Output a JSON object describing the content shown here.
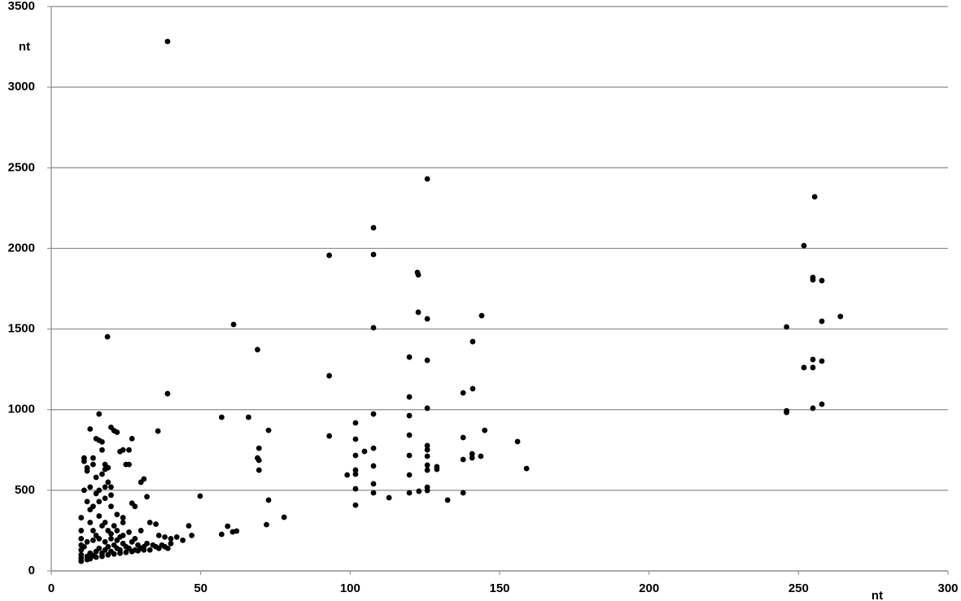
{
  "chart_data": {
    "type": "scatter",
    "x_label": "nt",
    "y_label": "nt",
    "xlim": [
      0,
      300
    ],
    "xticks": [
      0,
      50,
      100,
      150,
      200,
      250,
      300
    ],
    "ylim": [
      0,
      3500
    ],
    "yticks": [
      0,
      500,
      1000,
      1500,
      2000,
      2500,
      3000,
      3500
    ],
    "grid": true,
    "color": "#000000",
    "x": [
      38.9,
      18.8,
      38.9,
      16,
      61,
      69,
      57,
      66,
      35.7,
      72.7,
      69,
      69.5,
      69.5,
      69.5,
      72.7,
      72,
      77.9,
      49.8,
      57,
      59,
      60.7,
      62,
      93,
      93,
      93,
      107.8,
      107.8,
      107.8,
      107.8,
      107.8,
      107.8,
      107.8,
      107.8,
      101.8,
      101.8,
      101.8,
      101.8,
      101.8,
      101.8,
      101.8,
      99,
      104.8,
      113,
      125.8,
      122.5,
      122.8,
      122.8,
      125.8,
      119.8,
      125.8,
      119.8,
      125.8,
      119.8,
      119.8,
      119.8,
      119.8,
      119.8,
      123,
      125.8,
      125.8,
      125.8,
      125.8,
      125.8,
      125.8,
      125.8,
      129,
      129,
      132.6,
      137.8,
      137.8,
      137.8,
      137.8,
      141,
      141,
      140.8,
      140.8,
      144,
      143.7,
      145,
      156,
      159,
      255.4,
      251.8,
      254.8,
      254.8,
      257.8,
      246,
      264,
      257.8,
      254.8,
      257.8,
      251.8,
      254.8,
      246,
      246,
      254.8,
      257.8,
      10,
      10,
      10,
      10,
      10,
      10,
      10,
      10,
      11,
      11,
      11,
      12,
      12,
      13,
      12,
      13,
      14,
      14,
      15,
      16,
      17,
      17,
      15,
      16,
      18,
      18,
      19,
      20,
      20,
      21,
      22,
      23,
      24,
      25,
      26,
      26,
      27,
      28,
      27,
      30,
      31,
      32,
      33,
      35,
      36,
      38,
      40,
      42,
      44,
      46,
      47,
      12,
      13,
      14,
      15,
      16,
      17,
      18,
      19,
      20,
      21,
      22,
      23,
      24,
      25,
      26,
      27,
      28,
      29,
      30,
      31,
      32,
      33,
      34,
      35,
      36,
      37,
      38,
      39,
      40,
      13,
      14,
      15,
      16,
      17,
      18,
      19,
      20,
      21,
      22,
      23,
      24,
      26,
      28,
      30,
      12,
      14,
      16,
      18,
      20,
      22,
      24,
      11,
      12,
      13,
      15,
      17,
      19,
      21,
      23,
      25,
      27,
      29,
      31,
      16,
      18,
      20,
      14,
      22,
      24,
      20,
      15,
      18,
      17,
      13,
      19
    ],
    "values": [
      3283,
      1452,
      1099,
      973,
      1528,
      1372,
      953,
      953,
      867,
      872,
      700,
      625,
      761,
      686,
      439,
      287,
      333,
      464,
      227,
      277,
      242,
      247,
      1957,
      1210,
      837,
      2128,
      1962,
      1508,
      973,
      761,
      651,
      540,
      484,
      918,
      817,
      716,
      625,
      600,
      509,
      408,
      595,
      741,
      454,
      2431,
      1851,
      1836,
      1604,
      1563,
      1326,
      1306,
      1079,
      1009,
      963,
      842,
      716,
      595,
      484,
      494,
      777,
      751,
      711,
      656,
      625,
      519,
      499,
      646,
      630,
      439,
      1104,
      827,
      691,
      484,
      1130,
      1422,
      726,
      701,
      1583,
      711,
      872,
      802,
      635,
      2320,
      2017,
      1820,
      1805,
      1800,
      1513,
      1578,
      1548,
      1311,
      1301,
      1261,
      1261,
      993,
      983,
      1009,
      1034,
      60,
      80,
      100,
      130,
      160,
      200,
      250,
      330,
      500,
      700,
      680,
      620,
      640,
      880,
      430,
      380,
      700,
      660,
      820,
      810,
      800,
      750,
      580,
      500,
      660,
      630,
      550,
      520,
      890,
      870,
      860,
      740,
      750,
      660,
      660,
      750,
      820,
      400,
      420,
      550,
      570,
      460,
      300,
      290,
      220,
      210,
      200,
      210,
      190,
      280,
      220,
      90,
      110,
      95,
      120,
      140,
      110,
      130,
      150,
      120,
      160,
      140,
      130,
      170,
      150,
      140,
      180,
      130,
      160,
      140,
      150,
      170,
      130,
      160,
      150,
      140,
      160,
      150,
      140,
      170,
      300,
      250,
      220,
      340,
      280,
      300,
      250,
      230,
      280,
      250,
      210,
      300,
      240,
      200,
      250,
      180,
      190,
      200,
      180,
      200,
      190,
      220,
      150,
      70,
      75,
      85,
      90,
      100,
      105,
      110,
      115,
      120,
      125,
      130,
      430,
      450,
      470,
      400,
      350,
      330,
      400,
      480,
      520,
      600,
      520,
      640
    ]
  }
}
